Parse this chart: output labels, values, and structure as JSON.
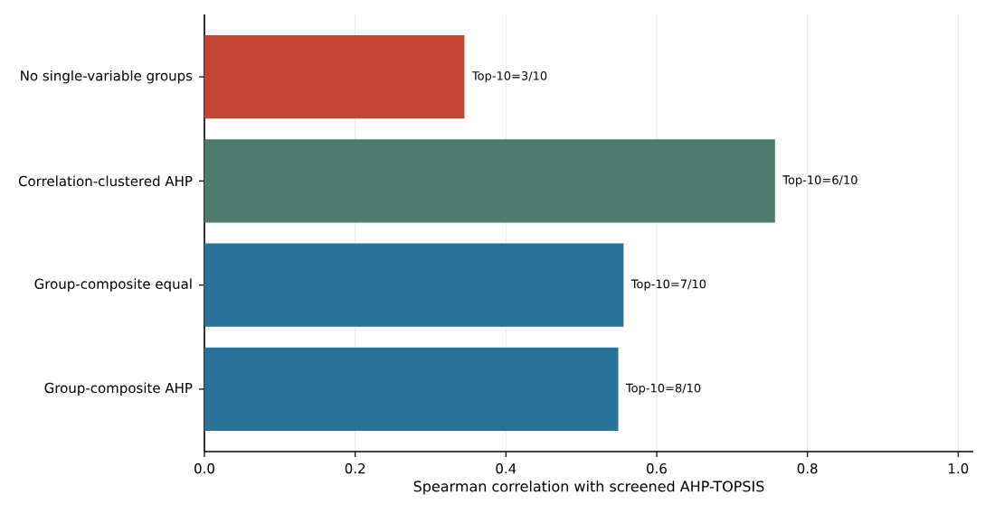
{
  "chart_data": {
    "type": "bar",
    "orientation": "horizontal",
    "categories": [
      "No single-variable groups",
      "Correlation-clustered AHP",
      "Group-composite equal",
      "Group-composite AHP"
    ],
    "values": [
      0.345,
      0.757,
      0.556,
      0.549
    ],
    "colors": [
      "#c44536",
      "#4f7a6e",
      "#287299",
      "#287299"
    ],
    "xlabel": "Spearman correlation with screened AHP-TOPSIS",
    "xlim": [
      0,
      1.02
    ],
    "xticks": [
      {
        "value": 0,
        "label": "0.0"
      },
      {
        "value": 0.2,
        "label": "0.2"
      },
      {
        "value": 0.4,
        "label": "0.4"
      },
      {
        "value": 0.6,
        "label": "0.6"
      },
      {
        "value": 0.8,
        "label": "0.8"
      },
      {
        "value": 1.0,
        "label": "1.0"
      }
    ],
    "grid": "x",
    "annotations": [
      {
        "text": "Top-10=3/10",
        "x": 0.345,
        "y": "No single-variable groups"
      },
      {
        "text": "Top-10=6/10",
        "x": 0.757,
        "y": "Correlation-clustered AHP"
      },
      {
        "text": "Top-10=7/10",
        "x": 0.556,
        "y": "Group-composite equal"
      },
      {
        "text": "Top-10=8/10",
        "x": 0.549,
        "y": "Group-composite AHP"
      }
    ]
  }
}
